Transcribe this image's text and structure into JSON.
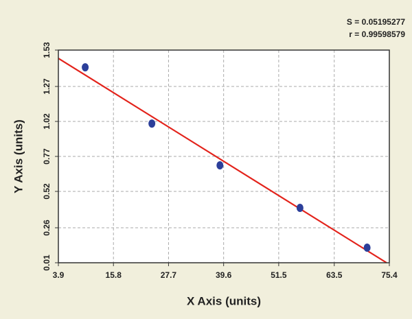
{
  "chart_data": {
    "type": "scatter",
    "x_label": "X Axis (units)",
    "y_label": "Y Axis (units)",
    "annotations": [
      "S = 0.05195277",
      "r = 0.99598579"
    ],
    "x": [
      9.7,
      24.1,
      38.8,
      56.1,
      70.6
    ],
    "values": [
      1.407,
      1.005,
      0.706,
      0.402,
      0.118
    ],
    "color": "#2c3f9a",
    "trendline": {
      "x": [
        3.9,
        74.8
      ],
      "values": [
        1.471,
        0.01
      ],
      "color": "#e3231b"
    },
    "xlim": [
      3.9,
      75.4
    ],
    "ylim": [
      0.01,
      1.53
    ],
    "xticks": [
      3.9,
      15.8,
      27.7,
      39.6,
      51.5,
      63.5,
      75.4
    ],
    "yticks": [
      0.01,
      0.26,
      0.52,
      0.77,
      1.02,
      1.27,
      1.53
    ],
    "grid": true
  }
}
